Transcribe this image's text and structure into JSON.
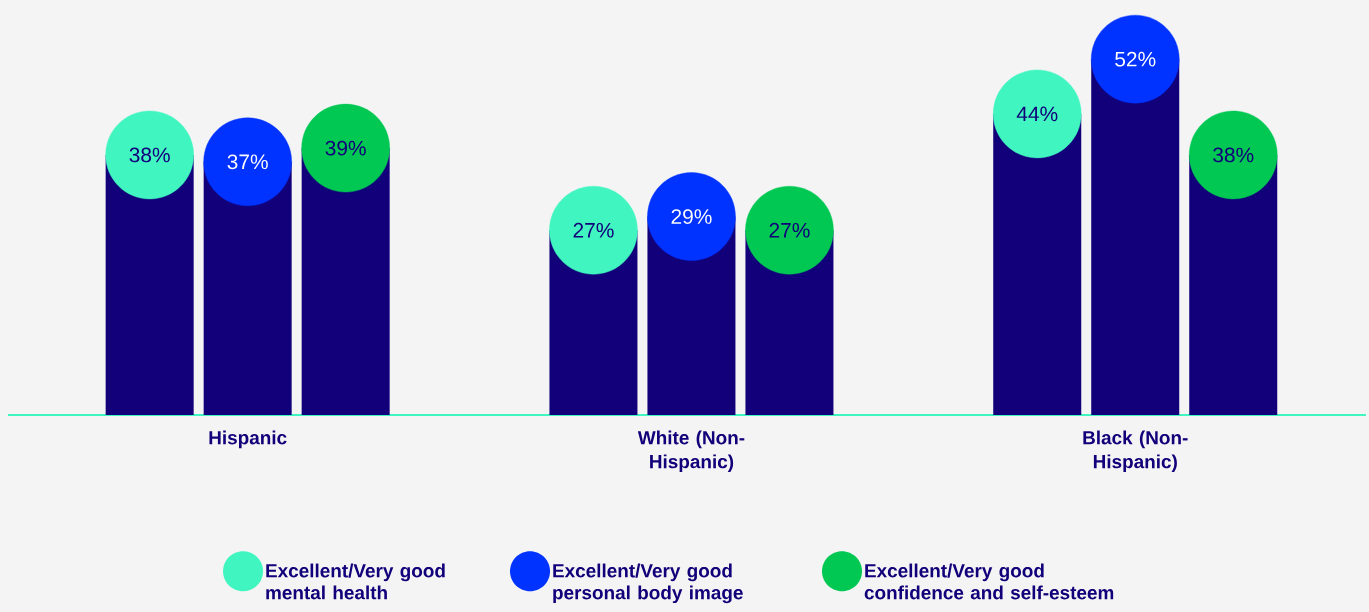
{
  "chart_data": {
    "type": "lollipop",
    "categories": [
      "Hispanic",
      "White (Non-Hispanic)",
      "Black (Non-Hispanic)"
    ],
    "series": [
      {
        "name": "Excellent/Very good mental health",
        "color": "#40f5c0",
        "values": [
          38,
          27,
          44
        ],
        "value_labels": [
          "38%",
          "27%",
          "44%"
        ]
      },
      {
        "name": "Excellent/Very good personal body image",
        "color": "#0033ff",
        "values": [
          37,
          29,
          52
        ],
        "value_labels": [
          "37%",
          "29%",
          "52%"
        ]
      },
      {
        "name": "Excellent/Very good confidence and self-esteem",
        "color": "#00c853",
        "values": [
          39,
          27,
          38
        ],
        "value_labels": [
          "39%",
          "27%",
          "38%"
        ]
      }
    ],
    "legend": "bottom"
  }
}
